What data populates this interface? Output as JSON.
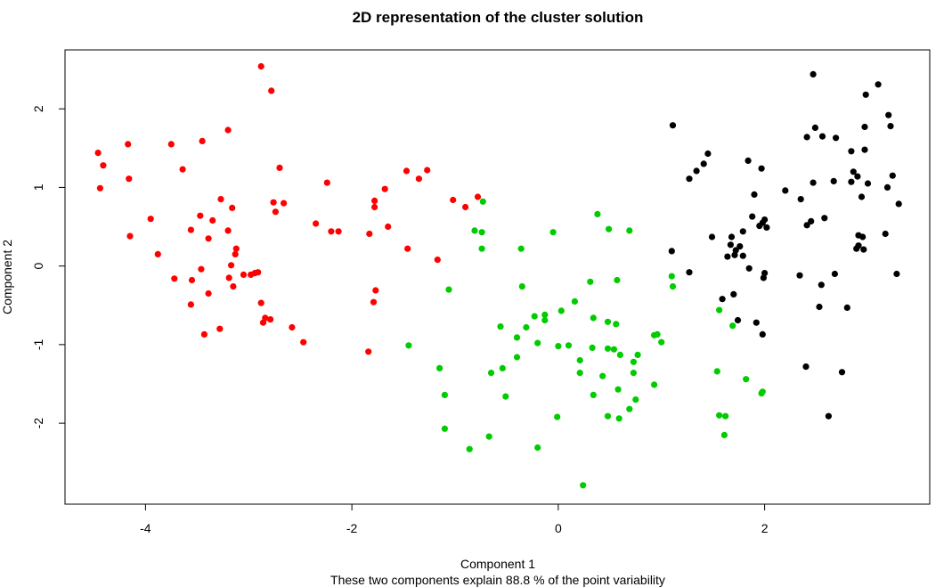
{
  "chart_data": {
    "type": "scatter",
    "title": "2D representation of the cluster solution",
    "xlabel": "Component 1",
    "subtitle": "These two components explain 88.8 % of the point variability",
    "ylabel": "Component 2",
    "xlim": [
      -4.78,
      3.6
    ],
    "ylim": [
      -3.03,
      2.75
    ],
    "x_ticks": [
      -4,
      -2,
      0,
      2
    ],
    "y_ticks": [
      -2,
      -1,
      0,
      1,
      2
    ],
    "x_tick_labels": [
      "-4",
      "-2",
      "0",
      "2"
    ],
    "y_tick_labels": [
      "-2",
      "-1",
      "0",
      "1",
      "2"
    ],
    "grid": false,
    "legend": "none",
    "series": [
      {
        "color": "#ff0000",
        "points": [
          [
            -2.88,
            2.54
          ],
          [
            -2.78,
            2.23
          ],
          [
            -3.2,
            1.73
          ],
          [
            -4.46,
            1.44
          ],
          [
            -4.41,
            1.28
          ],
          [
            -4.17,
            1.55
          ],
          [
            -3.75,
            1.55
          ],
          [
            -3.45,
            1.59
          ],
          [
            -4.16,
            1.11
          ],
          [
            -4.44,
            0.99
          ],
          [
            -3.64,
            1.23
          ],
          [
            -2.7,
            1.25
          ],
          [
            -1.47,
            1.21
          ],
          [
            -1.27,
            1.22
          ],
          [
            -1.35,
            1.11
          ],
          [
            -1.68,
            0.98
          ],
          [
            -2.24,
            1.06
          ],
          [
            -3.27,
            0.85
          ],
          [
            -3.16,
            0.74
          ],
          [
            -2.76,
            0.81
          ],
          [
            -2.66,
            0.8
          ],
          [
            -2.74,
            0.69
          ],
          [
            -1.78,
            0.83
          ],
          [
            -1.78,
            0.75
          ],
          [
            -1.65,
            0.5
          ],
          [
            -1.02,
            0.84
          ],
          [
            -0.9,
            0.75
          ],
          [
            -0.78,
            0.88
          ],
          [
            -3.95,
            0.6
          ],
          [
            -3.47,
            0.64
          ],
          [
            -3.35,
            0.58
          ],
          [
            -3.56,
            0.46
          ],
          [
            -3.2,
            0.45
          ],
          [
            -2.35,
            0.54
          ],
          [
            -2.2,
            0.44
          ],
          [
            -2.13,
            0.44
          ],
          [
            -1.83,
            0.41
          ],
          [
            -1.46,
            0.22
          ],
          [
            -1.17,
            0.08
          ],
          [
            -4.15,
            0.38
          ],
          [
            -3.39,
            0.35
          ],
          [
            -3.12,
            0.22
          ],
          [
            -3.13,
            0.15
          ],
          [
            -3.88,
            0.15
          ],
          [
            -3.17,
            0.01
          ],
          [
            -3.46,
            -0.04
          ],
          [
            -3.05,
            -0.11
          ],
          [
            -2.98,
            -0.11
          ],
          [
            -2.94,
            -0.09
          ],
          [
            -2.91,
            -0.08
          ],
          [
            -3.72,
            -0.16
          ],
          [
            -3.55,
            -0.18
          ],
          [
            -3.19,
            -0.15
          ],
          [
            -3.15,
            -0.26
          ],
          [
            -3.39,
            -0.35
          ],
          [
            -1.77,
            -0.31
          ],
          [
            -1.79,
            -0.46
          ],
          [
            -2.88,
            -0.47
          ],
          [
            -3.56,
            -0.49
          ],
          [
            -2.84,
            -0.66
          ],
          [
            -2.79,
            -0.68
          ],
          [
            -2.86,
            -0.72
          ],
          [
            -2.58,
            -0.78
          ],
          [
            -3.28,
            -0.8
          ],
          [
            -3.43,
            -0.87
          ],
          [
            -2.47,
            -0.97
          ],
          [
            -1.84,
            -1.09
          ]
        ]
      },
      {
        "color": "#00cc00",
        "points": [
          [
            0.38,
            0.66
          ],
          [
            -0.73,
            0.82
          ],
          [
            -0.81,
            0.45
          ],
          [
            -0.74,
            0.43
          ],
          [
            -0.05,
            0.43
          ],
          [
            0.49,
            0.47
          ],
          [
            0.69,
            0.45
          ],
          [
            -0.36,
            0.22
          ],
          [
            -0.74,
            0.22
          ],
          [
            -0.35,
            -0.26
          ],
          [
            -1.06,
            -0.3
          ],
          [
            0.31,
            -0.2
          ],
          [
            0.57,
            -0.18
          ],
          [
            1.1,
            -0.13
          ],
          [
            1.11,
            -0.26
          ],
          [
            1.56,
            -0.56
          ],
          [
            0.03,
            -0.57
          ],
          [
            0.16,
            -0.45
          ],
          [
            -0.23,
            -0.64
          ],
          [
            -0.13,
            -0.62
          ],
          [
            -0.13,
            -0.69
          ],
          [
            -0.56,
            -0.77
          ],
          [
            -0.31,
            -0.78
          ],
          [
            0.34,
            -0.66
          ],
          [
            0.48,
            -0.71
          ],
          [
            0.56,
            -0.74
          ],
          [
            1.69,
            -0.76
          ],
          [
            0.93,
            -0.88
          ],
          [
            0.96,
            -0.87
          ],
          [
            1.0,
            -0.97
          ],
          [
            -1.45,
            -1.01
          ],
          [
            -0.4,
            -0.91
          ],
          [
            -0.2,
            -0.98
          ],
          [
            0.0,
            -1.02
          ],
          [
            0.1,
            -1.01
          ],
          [
            -0.4,
            -1.16
          ],
          [
            0.33,
            -1.04
          ],
          [
            0.48,
            -1.05
          ],
          [
            0.54,
            -1.06
          ],
          [
            0.6,
            -1.13
          ],
          [
            0.77,
            -1.13
          ],
          [
            0.21,
            -1.2
          ],
          [
            0.73,
            -1.22
          ],
          [
            -0.54,
            -1.3
          ],
          [
            -1.15,
            -1.3
          ],
          [
            -0.65,
            -1.36
          ],
          [
            0.21,
            -1.36
          ],
          [
            0.43,
            -1.4
          ],
          [
            0.73,
            -1.36
          ],
          [
            1.54,
            -1.34
          ],
          [
            1.82,
            -1.44
          ],
          [
            0.93,
            -1.51
          ],
          [
            0.58,
            -1.57
          ],
          [
            -0.51,
            -1.66
          ],
          [
            -1.1,
            -1.64
          ],
          [
            0.34,
            -1.64
          ],
          [
            0.75,
            -1.7
          ],
          [
            1.97,
            -1.62
          ],
          [
            1.98,
            -1.6
          ],
          [
            0.69,
            -1.82
          ],
          [
            -0.01,
            -1.92
          ],
          [
            0.48,
            -1.91
          ],
          [
            0.59,
            -1.94
          ],
          [
            1.56,
            -1.9
          ],
          [
            1.62,
            -1.91
          ],
          [
            -1.1,
            -2.07
          ],
          [
            -0.67,
            -2.17
          ],
          [
            1.61,
            -2.15
          ],
          [
            -0.86,
            -2.33
          ],
          [
            -0.2,
            -2.31
          ],
          [
            0.24,
            -2.79
          ]
        ]
      },
      {
        "color": "#000000",
        "points": [
          [
            2.47,
            2.44
          ],
          [
            3.1,
            2.31
          ],
          [
            2.98,
            2.18
          ],
          [
            3.2,
            1.92
          ],
          [
            3.22,
            1.78
          ],
          [
            1.11,
            1.79
          ],
          [
            2.49,
            1.76
          ],
          [
            2.97,
            1.77
          ],
          [
            2.56,
            1.65
          ],
          [
            2.41,
            1.64
          ],
          [
            2.69,
            1.63
          ],
          [
            2.84,
            1.46
          ],
          [
            2.97,
            1.48
          ],
          [
            1.45,
            1.43
          ],
          [
            1.41,
            1.3
          ],
          [
            1.84,
            1.34
          ],
          [
            1.34,
            1.21
          ],
          [
            1.97,
            1.24
          ],
          [
            2.86,
            1.2
          ],
          [
            2.9,
            1.14
          ],
          [
            3.24,
            1.15
          ],
          [
            2.67,
            1.08
          ],
          [
            2.84,
            1.07
          ],
          [
            3.0,
            1.05
          ],
          [
            1.27,
            1.11
          ],
          [
            2.47,
            1.06
          ],
          [
            2.2,
            0.96
          ],
          [
            1.9,
            0.91
          ],
          [
            2.94,
            0.88
          ],
          [
            3.19,
            1.0
          ],
          [
            2.35,
            0.85
          ],
          [
            3.3,
            0.79
          ],
          [
            2.58,
            0.61
          ],
          [
            2.41,
            0.52
          ],
          [
            2.45,
            0.57
          ],
          [
            1.88,
            0.63
          ],
          [
            1.98,
            0.55
          ],
          [
            2.0,
            0.59
          ],
          [
            2.02,
            0.49
          ],
          [
            1.95,
            0.51
          ],
          [
            1.49,
            0.37
          ],
          [
            1.68,
            0.37
          ],
          [
            1.79,
            0.44
          ],
          [
            3.17,
            0.41
          ],
          [
            2.91,
            0.39
          ],
          [
            2.95,
            0.37
          ],
          [
            2.91,
            0.26
          ],
          [
            1.67,
            0.27
          ],
          [
            2.89,
            0.22
          ],
          [
            2.96,
            0.21
          ],
          [
            1.1,
            0.19
          ],
          [
            1.76,
            0.25
          ],
          [
            1.64,
            0.12
          ],
          [
            1.71,
            0.14
          ],
          [
            1.72,
            0.2
          ],
          [
            1.79,
            0.13
          ],
          [
            1.85,
            -0.03
          ],
          [
            2.0,
            -0.09
          ],
          [
            1.99,
            -0.15
          ],
          [
            1.27,
            -0.08
          ],
          [
            2.34,
            -0.12
          ],
          [
            2.68,
            -0.1
          ],
          [
            3.28,
            -0.1
          ],
          [
            2.55,
            -0.24
          ],
          [
            1.7,
            -0.36
          ],
          [
            1.59,
            -0.42
          ],
          [
            2.53,
            -0.52
          ],
          [
            2.8,
            -0.53
          ],
          [
            1.74,
            -0.69
          ],
          [
            1.92,
            -0.72
          ],
          [
            1.98,
            -0.87
          ],
          [
            2.4,
            -1.28
          ],
          [
            2.75,
            -1.35
          ],
          [
            2.62,
            -1.91
          ]
        ]
      }
    ]
  }
}
